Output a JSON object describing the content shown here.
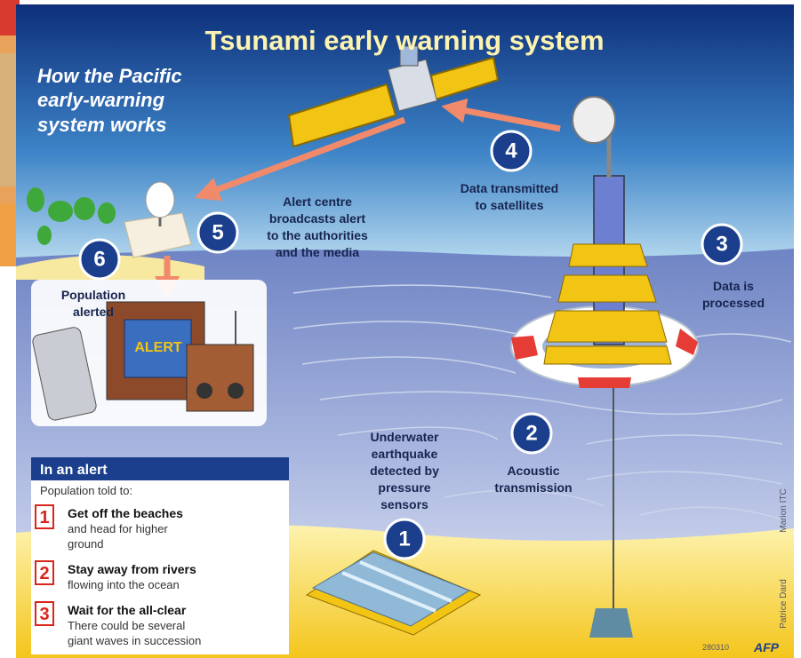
{
  "header": {
    "title": "Tsunami early warning system",
    "subtitle": [
      "How the Pacific",
      "early-warning",
      "system works"
    ]
  },
  "steps": [
    {
      "number": "1",
      "label": [
        "Underwater",
        "earthquake",
        "detected by",
        "pressure",
        "sensors"
      ]
    },
    {
      "number": "2",
      "label": [
        "Acoustic",
        "transmission"
      ]
    },
    {
      "number": "3",
      "label": [
        "Data is",
        "processed"
      ]
    },
    {
      "number": "4",
      "label": [
        "Data transmitted",
        "to satellites"
      ]
    },
    {
      "number": "5",
      "label": [
        "Alert centre",
        "broadcasts alert",
        "to the authorities",
        "and the media"
      ]
    },
    {
      "number": "6",
      "label": [
        "Population",
        "alerted"
      ]
    }
  ],
  "tv_screen": "ALERT",
  "alert_box": {
    "title": "In an alert",
    "intro": "Population told to:",
    "items": [
      {
        "number": "1",
        "heading": "Get off the beaches",
        "detail": [
          "and head for higher",
          "ground"
        ]
      },
      {
        "number": "2",
        "heading": "Stay away from rivers",
        "detail": [
          "flowing into the ocean"
        ]
      },
      {
        "number": "3",
        "heading": "Wait for the all-clear",
        "detail": [
          "There could be several",
          "giant waves in succession"
        ]
      }
    ]
  },
  "credits": {
    "artist": "Marion ITC",
    "photo": "Patrice Dard",
    "code": "280310",
    "agency": "AFP"
  }
}
